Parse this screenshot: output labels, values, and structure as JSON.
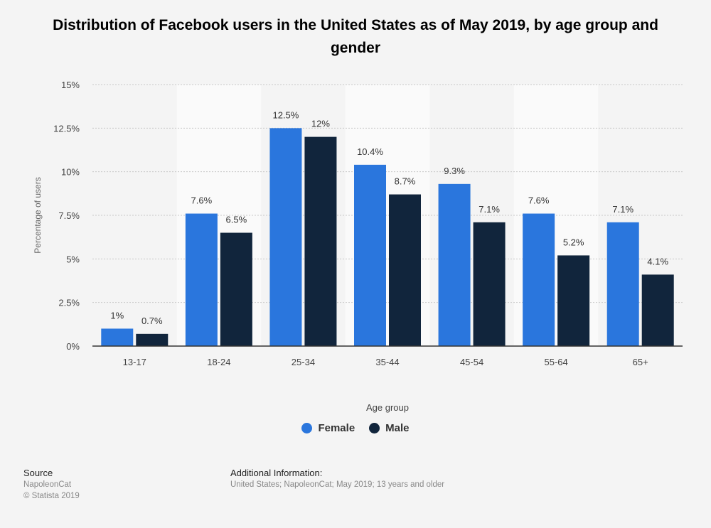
{
  "chart_data": {
    "type": "bar",
    "title": "Distribution of Facebook users in the United States as of May 2019, by age group and gender",
    "xlabel": "Age group",
    "ylabel": "Percentage of users",
    "ylim": [
      0,
      15
    ],
    "yticks": [
      0,
      2.5,
      5,
      7.5,
      10,
      12.5,
      15
    ],
    "ytick_labels": [
      "0%",
      "2.5%",
      "5%",
      "7.5%",
      "10%",
      "12.5%",
      "15%"
    ],
    "categories": [
      "13-17",
      "18-24",
      "25-34",
      "35-44",
      "45-54",
      "55-64",
      "65+"
    ],
    "series": [
      {
        "name": "Female",
        "color": "#2a76dd",
        "values": [
          1,
          7.6,
          12.5,
          10.4,
          9.3,
          7.6,
          7.1
        ],
        "labels": [
          "1%",
          "7.6%",
          "12.5%",
          "10.4%",
          "9.3%",
          "7.6%",
          "7.1%"
        ]
      },
      {
        "name": "Male",
        "color": "#11253c",
        "values": [
          0.7,
          6.5,
          12,
          8.7,
          7.1,
          5.2,
          4.1
        ],
        "labels": [
          "0.7%",
          "6.5%",
          "12%",
          "8.7%",
          "7.1%",
          "5.2%",
          "4.1%"
        ]
      }
    ],
    "grid": true,
    "legend_position": "bottom-center"
  },
  "footer": {
    "source_heading": "Source",
    "source_name": "NapoleonCat",
    "copyright": "© Statista 2019",
    "info_heading": "Additional Information:",
    "info_text": "United States; NapoleonCat; May 2019; 13 years and older"
  },
  "colors": {
    "background": "#f4f4f4",
    "band": "#fafafa",
    "grid": "#c8c8c8",
    "axis": "#333333"
  }
}
